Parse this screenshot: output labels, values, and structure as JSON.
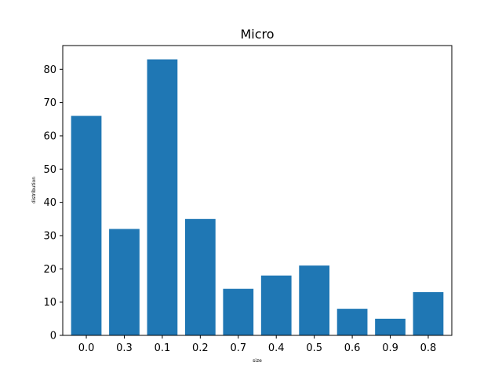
{
  "chart_data": {
    "type": "bar",
    "title": "Micro",
    "xlabel": "size",
    "ylabel": "distribution",
    "categories": [
      "0.0",
      "0.3",
      "0.1",
      "0.2",
      "0.7",
      "0.4",
      "0.5",
      "0.6",
      "0.9",
      "0.8"
    ],
    "values": [
      66,
      32,
      83,
      35,
      14,
      18,
      21,
      8,
      5,
      13
    ],
    "ylim": [
      0,
      87.15
    ],
    "yticks": [
      0,
      10,
      20,
      30,
      40,
      50,
      60,
      70,
      80
    ],
    "color": "#1f77b4",
    "grid": false,
    "legend": "none"
  }
}
